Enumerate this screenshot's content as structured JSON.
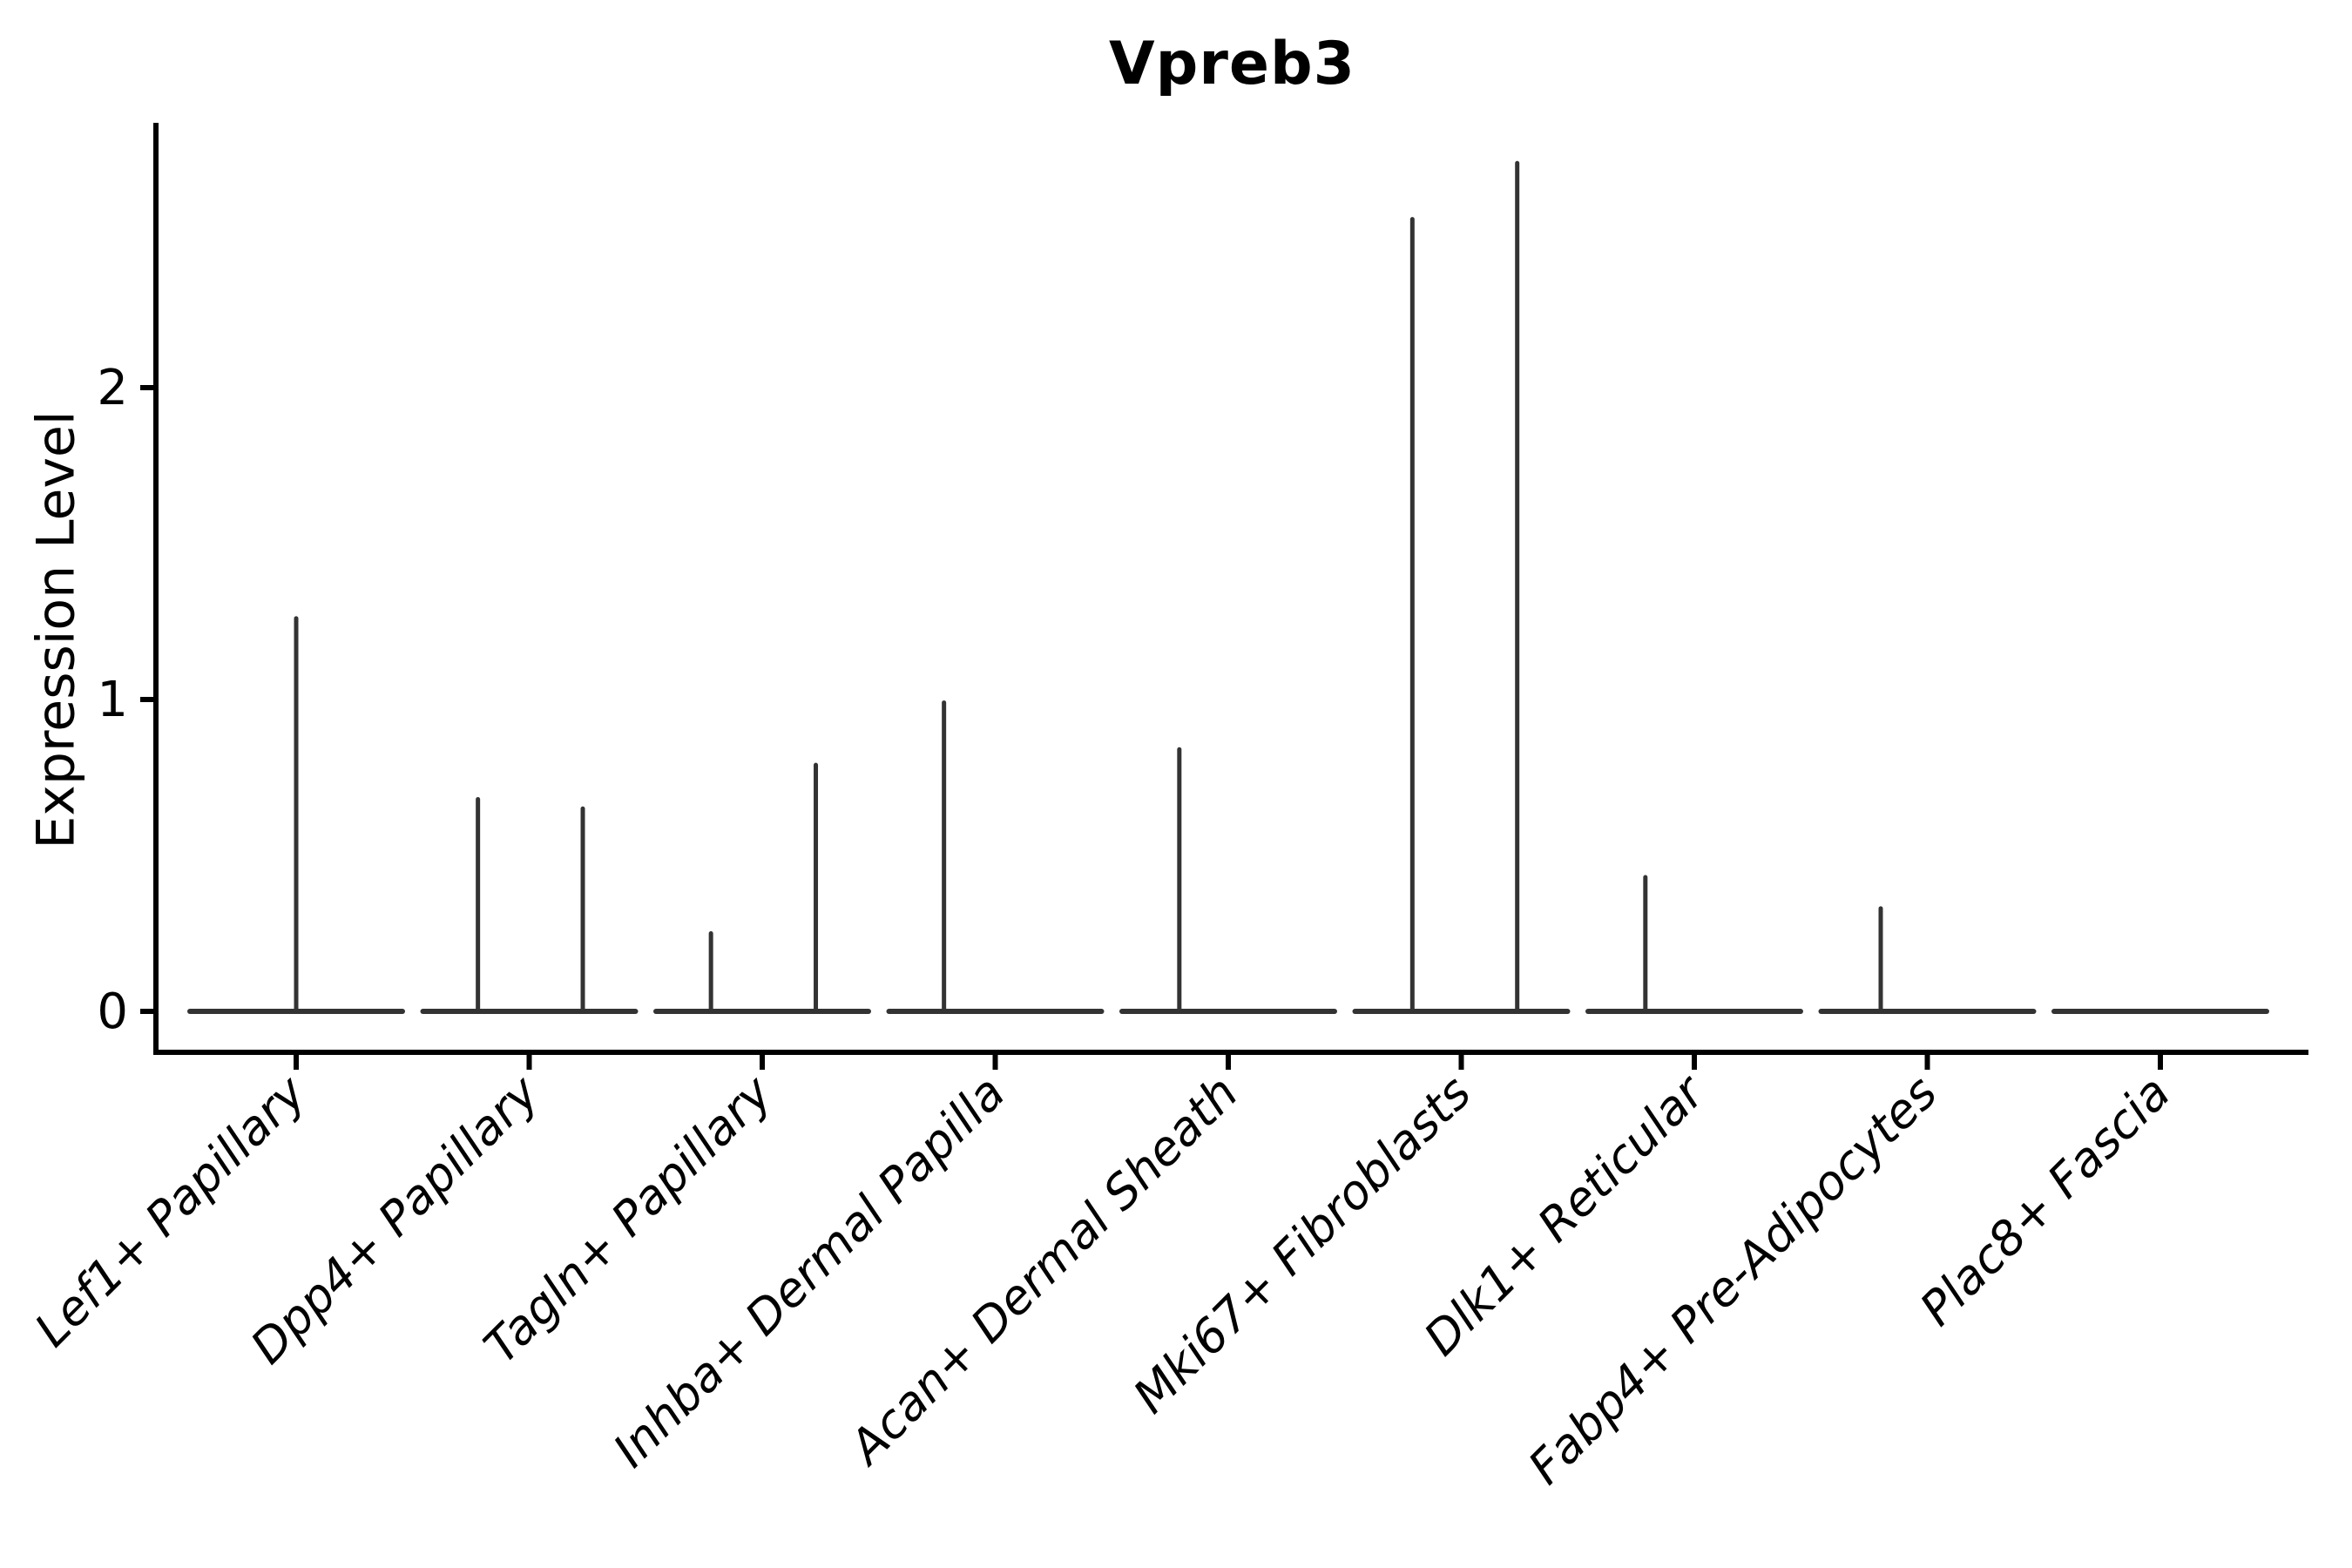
{
  "figure": {
    "title": "Vpreb3",
    "ylabel": "Expression Level"
  },
  "style": {
    "violin_color": "#333333",
    "axis_color": "#000000",
    "background": "#ffffff",
    "tick_label_color": "#000000"
  },
  "chart_data": {
    "type": "violin",
    "title": "Vpreb3",
    "xlabel": "",
    "ylabel": "Expression Level",
    "grid": false,
    "legend_position": "none",
    "yticks": [
      0,
      1,
      2
    ],
    "ylim": [
      -0.13,
      2.85
    ],
    "categories": [
      "Lef1+ Papillary",
      "Dpp4+ Papillary",
      "Tagln+ Papillary",
      "Inhba+ Dermal Papilla",
      "Acan+ Dermal Sheath",
      "Mki67+ Fibroblasts",
      "Dlk1+ Reticular",
      "Fabp4+ Pre-Adipocytes",
      "Plac8+ Fascia"
    ],
    "baseline_value": 0,
    "baseline_width_fraction": 0.91,
    "violins": [
      {
        "category": "Lef1+ Papillary",
        "max_expression": 1.26,
        "spikes": [
          {
            "offset": 0.0,
            "value": 1.26
          }
        ]
      },
      {
        "category": "Dpp4+ Papillary",
        "max_expression": 0.68,
        "spikes": [
          {
            "offset": -0.22,
            "value": 0.68
          },
          {
            "offset": 0.23,
            "value": 0.65
          }
        ]
      },
      {
        "category": "Tagln+ Papillary",
        "max_expression": 0.79,
        "spikes": [
          {
            "offset": -0.22,
            "value": 0.25
          },
          {
            "offset": 0.23,
            "value": 0.79
          }
        ]
      },
      {
        "category": "Inhba+ Dermal Papilla",
        "max_expression": 0.99,
        "spikes": [
          {
            "offset": -0.22,
            "value": 0.99
          }
        ]
      },
      {
        "category": "Acan+ Dermal Sheath",
        "max_expression": 0.84,
        "spikes": [
          {
            "offset": -0.21,
            "value": 0.84
          }
        ]
      },
      {
        "category": "Mki67+ Fibroblasts",
        "max_expression": 2.72,
        "spikes": [
          {
            "offset": -0.21,
            "value": 2.54
          },
          {
            "offset": 0.24,
            "value": 2.72
          }
        ]
      },
      {
        "category": "Dlk1+ Reticular",
        "max_expression": 0.43,
        "spikes": [
          {
            "offset": -0.21,
            "value": 0.43
          }
        ]
      },
      {
        "category": "Fabp4+ Pre-Adipocytes",
        "max_expression": 0.33,
        "spikes": [
          {
            "offset": -0.2,
            "value": 0.33
          }
        ]
      },
      {
        "category": "Plac8+ Fascia",
        "max_expression": 0.0,
        "spikes": []
      }
    ]
  }
}
